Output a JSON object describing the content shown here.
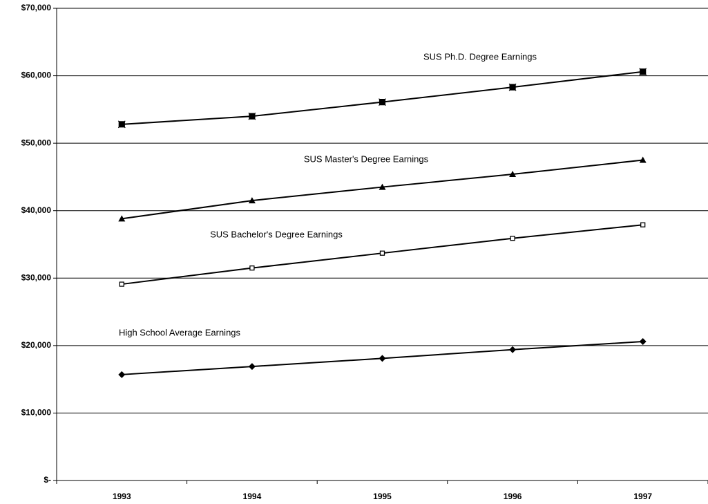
{
  "chart_data": {
    "type": "line",
    "categories": [
      "1993",
      "1994",
      "1995",
      "1996",
      "1997"
    ],
    "series": [
      {
        "name": "SUS  Ph.D. Degree Earnings",
        "color": "#000000",
        "marker": "x-square",
        "values": [
          52800,
          54000,
          56100,
          58300,
          60600
        ]
      },
      {
        "name": "SUS Master's Degree Earnings",
        "color": "#000000",
        "marker": "triangle",
        "values": [
          38800,
          41500,
          43500,
          45400,
          47500
        ]
      },
      {
        "name": "SUS  Bachelor's Degree Earnings",
        "color": "#000000",
        "marker": "hollow-square",
        "values": [
          29100,
          31500,
          33700,
          35900,
          37900
        ]
      },
      {
        "name": "High School Average Earnings",
        "color": "#000000",
        "marker": "diamond",
        "values": [
          15700,
          16900,
          18100,
          19400,
          20600
        ]
      }
    ],
    "ylim": [
      0,
      70000
    ],
    "yticks": [
      {
        "value": 0,
        "label": "$-"
      },
      {
        "value": 10000,
        "label": "$10,000"
      },
      {
        "value": 20000,
        "label": "$20,000"
      },
      {
        "value": 30000,
        "label": "$30,000"
      },
      {
        "value": 40000,
        "label": "$40,000"
      },
      {
        "value": 50000,
        "label": "$50,000"
      },
      {
        "value": 60000,
        "label": "$60,000"
      },
      {
        "value": 70000,
        "label": "$70,000"
      }
    ],
    "grid": true
  }
}
